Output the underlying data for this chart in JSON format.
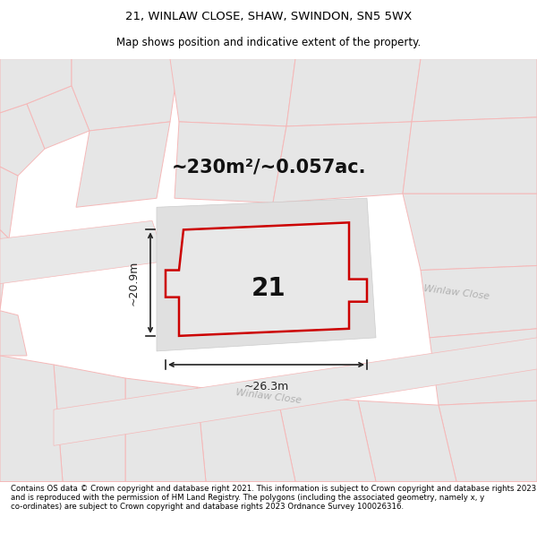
{
  "title_line1": "21, WINLAW CLOSE, SHAW, SWINDON, SN5 5WX",
  "title_line2": "Map shows position and indicative extent of the property.",
  "area_label": "~230m²/~0.057ac.",
  "property_number": "21",
  "width_label": "~26.3m",
  "height_label": "~20.9m",
  "copyright_text": "Contains OS data © Crown copyright and database right 2021. This information is subject to Crown copyright and database rights 2023 and is reproduced with the permission of HM Land Registry. The polygons (including the associated geometry, namely x, y co-ordinates) are subject to Crown copyright and database rights 2023 Ordnance Survey 100026316.",
  "bg_color": "#f2f2f2",
  "plot_fill": "#e6e6e6",
  "plot_edge": "#c8c8c8",
  "road_fill": "#e6e6e6",
  "road_edge": "#f5b8b8",
  "prop_fill": "#e8e8e8",
  "prop_edge": "#cc0000",
  "dim_color": "#222222",
  "street_color": "#b0b0b0",
  "title1_fontsize": 9.5,
  "title2_fontsize": 8.5,
  "area_fontsize": 15,
  "num_fontsize": 20,
  "dim_fontsize": 9,
  "street_fontsize": 8,
  "copy_fontsize": 6.2
}
